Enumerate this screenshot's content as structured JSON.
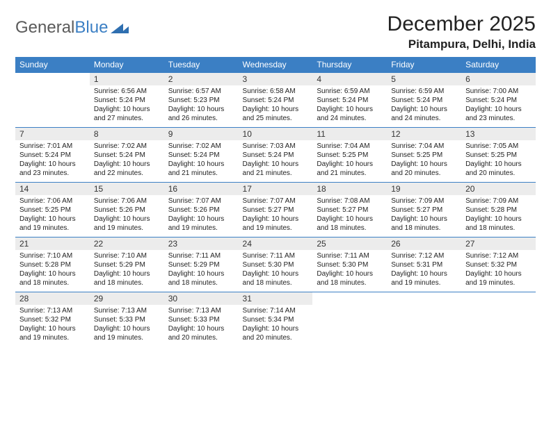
{
  "brand": {
    "name1": "General",
    "name2": "Blue"
  },
  "title": "December 2025",
  "location": "Pitampura, Delhi, India",
  "colors": {
    "header_bg": "#3b7fc4",
    "header_text": "#ffffff",
    "daynum_bg": "#ececec",
    "border": "#3b7fc4",
    "page_bg": "#ffffff"
  },
  "fonts": {
    "title_size": 30,
    "location_size": 17,
    "weekday_size": 12,
    "daynum_size": 12,
    "cell_size": 10
  },
  "weekdays": [
    "Sunday",
    "Monday",
    "Tuesday",
    "Wednesday",
    "Thursday",
    "Friday",
    "Saturday"
  ],
  "weeks": [
    [
      null,
      {
        "n": "1",
        "sr": "Sunrise: 6:56 AM",
        "ss": "Sunset: 5:24 PM",
        "dl": "Daylight: 10 hours and 27 minutes."
      },
      {
        "n": "2",
        "sr": "Sunrise: 6:57 AM",
        "ss": "Sunset: 5:23 PM",
        "dl": "Daylight: 10 hours and 26 minutes."
      },
      {
        "n": "3",
        "sr": "Sunrise: 6:58 AM",
        "ss": "Sunset: 5:24 PM",
        "dl": "Daylight: 10 hours and 25 minutes."
      },
      {
        "n": "4",
        "sr": "Sunrise: 6:59 AM",
        "ss": "Sunset: 5:24 PM",
        "dl": "Daylight: 10 hours and 24 minutes."
      },
      {
        "n": "5",
        "sr": "Sunrise: 6:59 AM",
        "ss": "Sunset: 5:24 PM",
        "dl": "Daylight: 10 hours and 24 minutes."
      },
      {
        "n": "6",
        "sr": "Sunrise: 7:00 AM",
        "ss": "Sunset: 5:24 PM",
        "dl": "Daylight: 10 hours and 23 minutes."
      }
    ],
    [
      {
        "n": "7",
        "sr": "Sunrise: 7:01 AM",
        "ss": "Sunset: 5:24 PM",
        "dl": "Daylight: 10 hours and 23 minutes."
      },
      {
        "n": "8",
        "sr": "Sunrise: 7:02 AM",
        "ss": "Sunset: 5:24 PM",
        "dl": "Daylight: 10 hours and 22 minutes."
      },
      {
        "n": "9",
        "sr": "Sunrise: 7:02 AM",
        "ss": "Sunset: 5:24 PM",
        "dl": "Daylight: 10 hours and 21 minutes."
      },
      {
        "n": "10",
        "sr": "Sunrise: 7:03 AM",
        "ss": "Sunset: 5:24 PM",
        "dl": "Daylight: 10 hours and 21 minutes."
      },
      {
        "n": "11",
        "sr": "Sunrise: 7:04 AM",
        "ss": "Sunset: 5:25 PM",
        "dl": "Daylight: 10 hours and 21 minutes."
      },
      {
        "n": "12",
        "sr": "Sunrise: 7:04 AM",
        "ss": "Sunset: 5:25 PM",
        "dl": "Daylight: 10 hours and 20 minutes."
      },
      {
        "n": "13",
        "sr": "Sunrise: 7:05 AM",
        "ss": "Sunset: 5:25 PM",
        "dl": "Daylight: 10 hours and 20 minutes."
      }
    ],
    [
      {
        "n": "14",
        "sr": "Sunrise: 7:06 AM",
        "ss": "Sunset: 5:25 PM",
        "dl": "Daylight: 10 hours and 19 minutes."
      },
      {
        "n": "15",
        "sr": "Sunrise: 7:06 AM",
        "ss": "Sunset: 5:26 PM",
        "dl": "Daylight: 10 hours and 19 minutes."
      },
      {
        "n": "16",
        "sr": "Sunrise: 7:07 AM",
        "ss": "Sunset: 5:26 PM",
        "dl": "Daylight: 10 hours and 19 minutes."
      },
      {
        "n": "17",
        "sr": "Sunrise: 7:07 AM",
        "ss": "Sunset: 5:27 PM",
        "dl": "Daylight: 10 hours and 19 minutes."
      },
      {
        "n": "18",
        "sr": "Sunrise: 7:08 AM",
        "ss": "Sunset: 5:27 PM",
        "dl": "Daylight: 10 hours and 18 minutes."
      },
      {
        "n": "19",
        "sr": "Sunrise: 7:09 AM",
        "ss": "Sunset: 5:27 PM",
        "dl": "Daylight: 10 hours and 18 minutes."
      },
      {
        "n": "20",
        "sr": "Sunrise: 7:09 AM",
        "ss": "Sunset: 5:28 PM",
        "dl": "Daylight: 10 hours and 18 minutes."
      }
    ],
    [
      {
        "n": "21",
        "sr": "Sunrise: 7:10 AM",
        "ss": "Sunset: 5:28 PM",
        "dl": "Daylight: 10 hours and 18 minutes."
      },
      {
        "n": "22",
        "sr": "Sunrise: 7:10 AM",
        "ss": "Sunset: 5:29 PM",
        "dl": "Daylight: 10 hours and 18 minutes."
      },
      {
        "n": "23",
        "sr": "Sunrise: 7:11 AM",
        "ss": "Sunset: 5:29 PM",
        "dl": "Daylight: 10 hours and 18 minutes."
      },
      {
        "n": "24",
        "sr": "Sunrise: 7:11 AM",
        "ss": "Sunset: 5:30 PM",
        "dl": "Daylight: 10 hours and 18 minutes."
      },
      {
        "n": "25",
        "sr": "Sunrise: 7:11 AM",
        "ss": "Sunset: 5:30 PM",
        "dl": "Daylight: 10 hours and 18 minutes."
      },
      {
        "n": "26",
        "sr": "Sunrise: 7:12 AM",
        "ss": "Sunset: 5:31 PM",
        "dl": "Daylight: 10 hours and 19 minutes."
      },
      {
        "n": "27",
        "sr": "Sunrise: 7:12 AM",
        "ss": "Sunset: 5:32 PM",
        "dl": "Daylight: 10 hours and 19 minutes."
      }
    ],
    [
      {
        "n": "28",
        "sr": "Sunrise: 7:13 AM",
        "ss": "Sunset: 5:32 PM",
        "dl": "Daylight: 10 hours and 19 minutes."
      },
      {
        "n": "29",
        "sr": "Sunrise: 7:13 AM",
        "ss": "Sunset: 5:33 PM",
        "dl": "Daylight: 10 hours and 19 minutes."
      },
      {
        "n": "30",
        "sr": "Sunrise: 7:13 AM",
        "ss": "Sunset: 5:33 PM",
        "dl": "Daylight: 10 hours and 20 minutes."
      },
      {
        "n": "31",
        "sr": "Sunrise: 7:14 AM",
        "ss": "Sunset: 5:34 PM",
        "dl": "Daylight: 10 hours and 20 minutes."
      },
      null,
      null,
      null
    ]
  ]
}
